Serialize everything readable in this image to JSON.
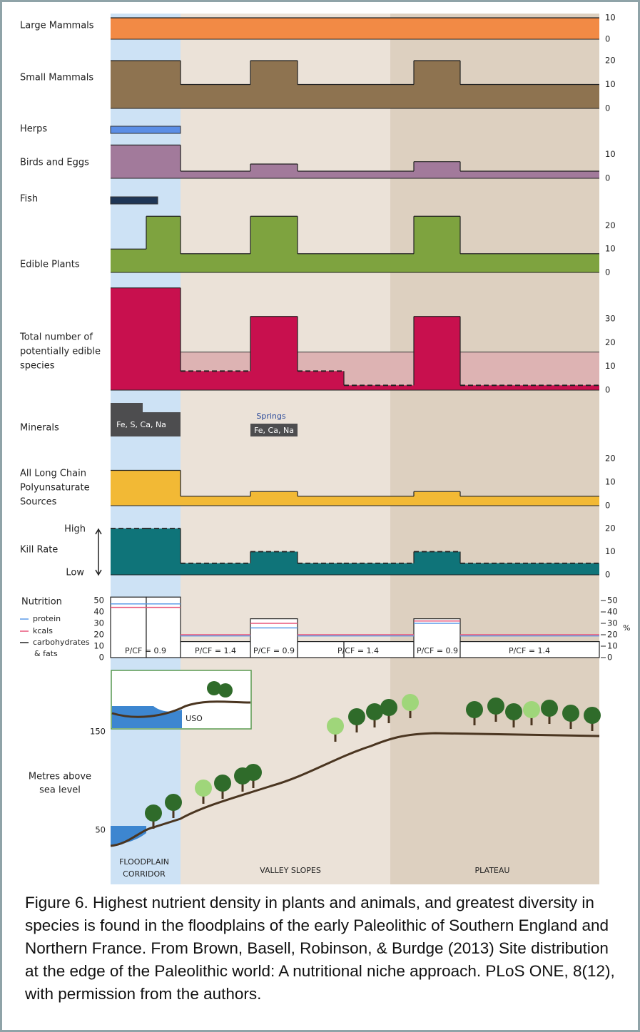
{
  "rows": [
    {
      "label": [
        "Large Mammals"
      ],
      "color": "#f28a45",
      "ylim": [
        0,
        10
      ],
      "yticks": [
        0,
        10
      ],
      "values": [
        10,
        10,
        10,
        10,
        10,
        10,
        10,
        10
      ]
    },
    {
      "label": [
        "Small Mammals"
      ],
      "color": "#8e7350",
      "ylim": [
        0,
        20
      ],
      "yticks": [
        0,
        10,
        20
      ],
      "values": [
        20,
        20,
        10,
        20,
        10,
        10,
        20,
        10
      ]
    },
    {
      "label": [
        "Herps"
      ],
      "color": "#5b8ee6"
    },
    {
      "label": [
        "Birds and Eggs"
      ],
      "color": "#a27a9b",
      "ylim": [
        0,
        15
      ],
      "yticks": [
        0,
        10
      ],
      "values": [
        14,
        14,
        3,
        6,
        3,
        3,
        7,
        3
      ]
    },
    {
      "label": [
        "Fish"
      ],
      "color": "#1f3656"
    },
    {
      "label": [
        "Edible Plants"
      ],
      "color": "#7ea33f",
      "ylim": [
        0,
        25
      ],
      "yticks": [
        0,
        10,
        20
      ],
      "values": [
        10,
        24,
        8,
        24,
        8,
        8,
        24,
        8
      ]
    },
    {
      "label": [
        "Total number of",
        "potentially edible",
        "species"
      ],
      "color": "#c8104e",
      "background_color": "#ddb3b3",
      "ylim": [
        0,
        45
      ],
      "yticks": [
        0,
        10,
        20,
        30
      ],
      "values": [
        43,
        43,
        8,
        31,
        8,
        2,
        31,
        2
      ],
      "background_values": [
        null,
        null,
        16,
        null,
        16,
        16,
        null,
        16
      ]
    },
    {
      "label": [
        "Minerals"
      ],
      "notes": [
        "Fe, S, Ca, Na",
        "Springs",
        "Fe, Ca, Na"
      ]
    },
    {
      "label": [
        "All Long Chain",
        "Polyunsaturate",
        "Sources"
      ],
      "color": "#f2b935",
      "ylim": [
        0,
        20
      ],
      "yticks": [
        0,
        10,
        20
      ],
      "values": [
        15,
        15,
        4,
        6,
        4,
        4,
        6,
        4
      ]
    },
    {
      "label": [
        "Kill Rate"
      ],
      "scale_labels": [
        "High",
        "Low"
      ],
      "color": "#0f7479",
      "ylim": [
        0,
        20
      ],
      "yticks": [
        0,
        10,
        20
      ],
      "values": [
        20,
        20,
        5,
        10,
        5,
        5,
        10,
        5
      ]
    }
  ],
  "nutrition": {
    "label": "Nutrition",
    "unit": "%",
    "ylim": [
      0,
      55
    ],
    "yticks": [
      0,
      10,
      20,
      30,
      40,
      50
    ],
    "series": [
      {
        "name": [
          "carbohydrates",
          "& fats"
        ],
        "color": "#222222",
        "values": [
          53,
          53,
          14,
          34,
          14,
          14,
          34,
          14
        ]
      },
      {
        "name": [
          "protein"
        ],
        "color": "#5b9be8",
        "values": [
          47,
          47,
          19,
          26,
          19,
          19,
          30,
          19
        ]
      },
      {
        "name": [
          "kcals"
        ],
        "color": "#e8557a",
        "values": [
          44,
          44,
          20,
          30,
          20,
          20,
          32,
          20
        ]
      }
    ],
    "ratio_labels": [
      "P/CF = 0.9",
      "P/CF = 1.4",
      "P/CF = 0.9",
      "P/CF = 1.4",
      "P/CF = 0.9",
      "P/CF = 1.4"
    ]
  },
  "landscape": {
    "label": [
      "Metres above",
      "sea level"
    ],
    "yticks": [
      150,
      50
    ],
    "inset_label": "USO"
  },
  "zones": [
    [
      "FLOODPLAIN",
      "CORRIDOR"
    ],
    [
      "VALLEY SLOPES"
    ],
    [
      "PLATEAU"
    ]
  ],
  "caption": "Figure 6. Highest nutrient density in plants and animals, and greatest diversity in species is found in the floodplains of the early Paleolithic of Southern England and Northern France. From Brown, Basell, Robinson, & Burdge (2013) Site distribution at the edge of the Paleolithic world: A nutritional niche approach. PLoS ONE, 8(12), with permission from the authors."
}
